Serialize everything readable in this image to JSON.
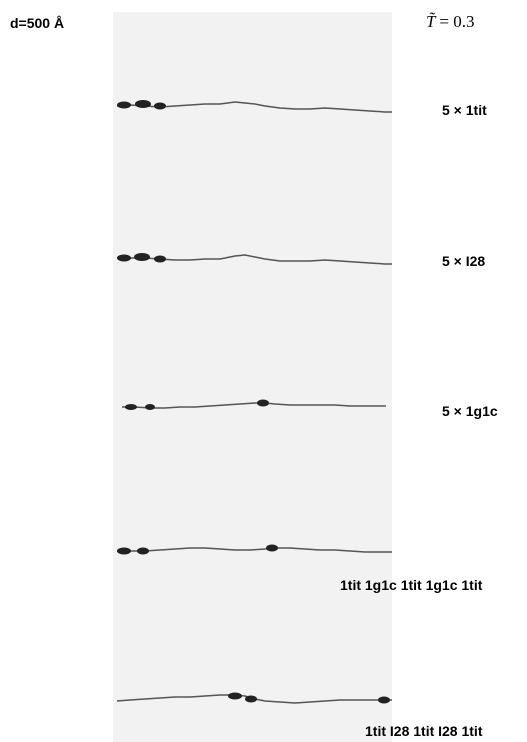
{
  "header": {
    "scale_label": "d=500 Å",
    "temperature_symbol": "T̃",
    "temperature_value": "= 0.3"
  },
  "rows": [
    {
      "label": "5 × 1tit"
    },
    {
      "label": "5 × I28"
    },
    {
      "label": "5 × 1g1c"
    },
    {
      "label": "1tit 1g1c 1tit 1g1c 1tit"
    },
    {
      "label": "1tit I28 1tit I28 1tit"
    }
  ],
  "colors": {
    "strip_background": "#f2f2f2",
    "chain_color": "#555555",
    "cluster_color": "#222222"
  }
}
